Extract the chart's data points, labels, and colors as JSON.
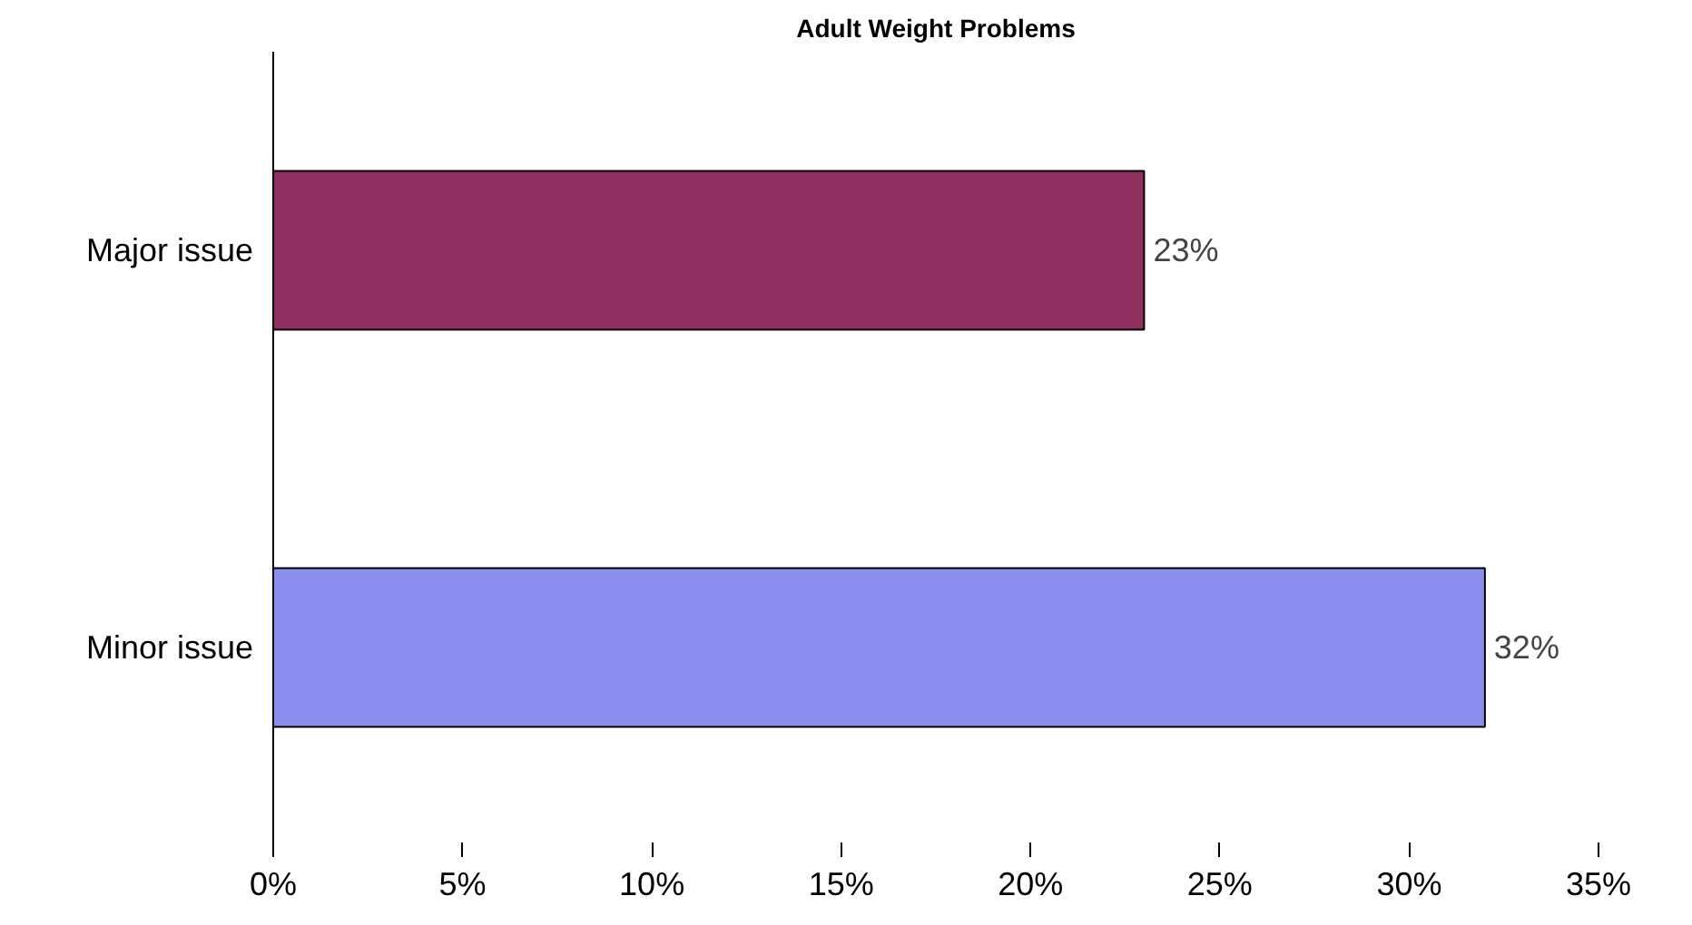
{
  "chart_data": {
    "type": "bar",
    "orientation": "horizontal",
    "title": "Adult Weight Problems",
    "categories": [
      "Major issue",
      "Minor issue"
    ],
    "values": [
      23,
      32
    ],
    "value_labels": [
      "23%",
      "32%"
    ],
    "colors": [
      "#8e2f5f",
      "#8e8ef0"
    ],
    "xlim": [
      0,
      35
    ],
    "xticks": [
      {
        "value": 0,
        "label": "0%"
      },
      {
        "value": 5,
        "label": "5%"
      },
      {
        "value": 10,
        "label": "10%"
      },
      {
        "value": 15,
        "label": "15%"
      },
      {
        "value": 20,
        "label": "20%"
      },
      {
        "value": 25,
        "label": "25%"
      },
      {
        "value": 30,
        "label": "30%"
      },
      {
        "value": 35,
        "label": "35%"
      }
    ],
    "grid": false
  }
}
